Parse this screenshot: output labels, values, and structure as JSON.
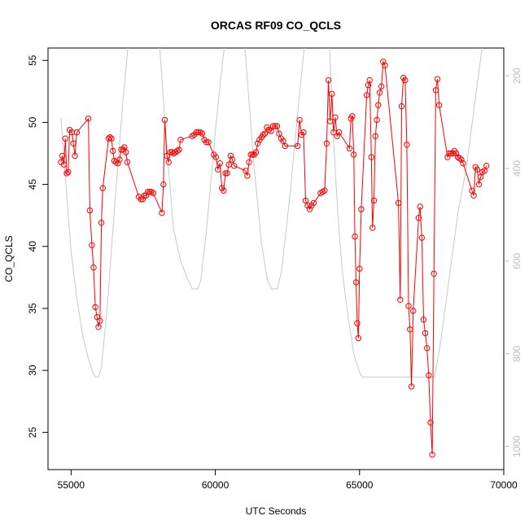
{
  "chart_data": {
    "type": "line",
    "title": "ORCAS RF09 CO_QCLS",
    "xlabel": "UTC Seconds",
    "ylabel": "CO_QCLS",
    "xlim": [
      54200,
      70000
    ],
    "ylim": [
      22,
      56
    ],
    "x_ticks": [
      55000,
      60000,
      65000,
      70000
    ],
    "y_ticks": [
      25,
      30,
      35,
      40,
      45,
      50,
      55
    ],
    "right_axis": {
      "lim": [
        1050,
        140
      ],
      "ticks": [
        200,
        400,
        600,
        800,
        1000
      ],
      "color": "#bdbdbd"
    },
    "grid": false,
    "series": [
      {
        "color": "#ff0000",
        "marker": "open-circle",
        "points": [
          [
            54650,
            46.8
          ],
          [
            54700,
            47.3
          ],
          [
            54750,
            46.6
          ],
          [
            54800,
            48.7
          ],
          [
            54850,
            45.9
          ],
          [
            54900,
            46.0
          ],
          [
            54950,
            49.4
          ],
          [
            55030,
            49.2
          ],
          [
            55080,
            48.3
          ],
          [
            55130,
            47.3
          ],
          [
            55200,
            49.2
          ],
          [
            55600,
            50.3
          ],
          [
            55650,
            42.9
          ],
          [
            55720,
            40.1
          ],
          [
            55780,
            38.3
          ],
          [
            55840,
            35.1
          ],
          [
            55900,
            34.3
          ],
          [
            55950,
            33.5
          ],
          [
            56000,
            34.0
          ],
          [
            56050,
            41.9
          ],
          [
            56100,
            44.7
          ],
          [
            56300,
            48.7
          ],
          [
            56350,
            48.8
          ],
          [
            56400,
            48.7
          ],
          [
            56450,
            47.7
          ],
          [
            56500,
            46.9
          ],
          [
            56560,
            46.8
          ],
          [
            56620,
            46.7
          ],
          [
            56680,
            47.0
          ],
          [
            56740,
            47.8
          ],
          [
            56800,
            47.8
          ],
          [
            56850,
            48.0
          ],
          [
            56900,
            47.6
          ],
          [
            56950,
            46.8
          ],
          [
            57350,
            44.0
          ],
          [
            57420,
            43.8
          ],
          [
            57480,
            43.8
          ],
          [
            57540,
            44.1
          ],
          [
            57600,
            44.1
          ],
          [
            57660,
            44.4
          ],
          [
            57720,
            44.4
          ],
          [
            57780,
            44.4
          ],
          [
            57850,
            44.3
          ],
          [
            58150,
            42.7
          ],
          [
            58200,
            45.0
          ],
          [
            58250,
            50.2
          ],
          [
            58320,
            47.3
          ],
          [
            58380,
            46.8
          ],
          [
            58440,
            47.6
          ],
          [
            58500,
            47.6
          ],
          [
            58560,
            47.5
          ],
          [
            58620,
            47.6
          ],
          [
            58680,
            47.7
          ],
          [
            58740,
            47.8
          ],
          [
            58800,
            48.6
          ],
          [
            59200,
            48.9
          ],
          [
            59270,
            49.0
          ],
          [
            59340,
            49.2
          ],
          [
            59410,
            49.2
          ],
          [
            59480,
            49.2
          ],
          [
            59550,
            49.1
          ],
          [
            59620,
            48.6
          ],
          [
            59690,
            48.4
          ],
          [
            59760,
            48.4
          ],
          [
            59950,
            47.4
          ],
          [
            60020,
            47.2
          ],
          [
            60090,
            46.2
          ],
          [
            60160,
            46.7
          ],
          [
            60230,
            44.7
          ],
          [
            60290,
            44.5
          ],
          [
            60350,
            45.9
          ],
          [
            60410,
            45.9
          ],
          [
            60470,
            46.6
          ],
          [
            60530,
            47.3
          ],
          [
            60590,
            47.0
          ],
          [
            60650,
            46.5
          ],
          [
            61050,
            46.1
          ],
          [
            61110,
            45.7
          ],
          [
            61170,
            46.8
          ],
          [
            61230,
            47.4
          ],
          [
            61290,
            47.4
          ],
          [
            61350,
            47.4
          ],
          [
            61410,
            47.6
          ],
          [
            61470,
            48.3
          ],
          [
            61530,
            48.6
          ],
          [
            61600,
            48.8
          ],
          [
            61660,
            49.0
          ],
          [
            61720,
            49.1
          ],
          [
            61790,
            49.6
          ],
          [
            61860,
            49.4
          ],
          [
            61930,
            49.3
          ],
          [
            62000,
            49.7
          ],
          [
            62070,
            49.7
          ],
          [
            62140,
            49.7
          ],
          [
            62210,
            49.1
          ],
          [
            62280,
            48.7
          ],
          [
            62350,
            48.5
          ],
          [
            62420,
            48.1
          ],
          [
            62850,
            48.1
          ],
          [
            62920,
            50.2
          ],
          [
            62990,
            49.0
          ],
          [
            63060,
            49.2
          ],
          [
            63130,
            43.7
          ],
          [
            63200,
            43.3
          ],
          [
            63270,
            43.0
          ],
          [
            63340,
            43.3
          ],
          [
            63410,
            43.5
          ],
          [
            63650,
            44.3
          ],
          [
            63720,
            44.4
          ],
          [
            63790,
            44.5
          ],
          [
            63860,
            48.3
          ],
          [
            63920,
            53.4
          ],
          [
            63980,
            50.1
          ],
          [
            64040,
            52.3
          ],
          [
            64100,
            49.2
          ],
          [
            64160,
            50.4
          ],
          [
            64220,
            48.9
          ],
          [
            64290,
            49.2
          ],
          [
            64650,
            47.9
          ],
          [
            64700,
            50.3
          ],
          [
            64750,
            50.5
          ],
          [
            64800,
            47.4
          ],
          [
            64840,
            40.8
          ],
          [
            64880,
            37.1
          ],
          [
            64920,
            33.8
          ],
          [
            64960,
            32.6
          ],
          [
            65000,
            38.2
          ],
          [
            65060,
            43.0
          ],
          [
            65250,
            52.2
          ],
          [
            65300,
            53.0
          ],
          [
            65350,
            53.4
          ],
          [
            65410,
            47.2
          ],
          [
            65450,
            41.5
          ],
          [
            65500,
            43.7
          ],
          [
            65550,
            48.9
          ],
          [
            65600,
            50.2
          ],
          [
            65650,
            51.4
          ],
          [
            65700,
            52.4
          ],
          [
            65760,
            52.9
          ],
          [
            65820,
            54.9
          ],
          [
            65880,
            54.6
          ],
          [
            66350,
            43.5
          ],
          [
            66410,
            35.7
          ],
          [
            66460,
            51.3
          ],
          [
            66520,
            53.6
          ],
          [
            66580,
            53.4
          ],
          [
            66640,
            48.2
          ],
          [
            66700,
            35.2
          ],
          [
            66750,
            33.3
          ],
          [
            66800,
            28.7
          ],
          [
            66860,
            34.8
          ],
          [
            67050,
            42.3
          ],
          [
            67100,
            43.2
          ],
          [
            67160,
            40.7
          ],
          [
            67220,
            34.1
          ],
          [
            67280,
            33.0
          ],
          [
            67340,
            31.8
          ],
          [
            67400,
            29.6
          ],
          [
            67460,
            25.8
          ],
          [
            67520,
            23.2
          ],
          [
            67580,
            37.8
          ],
          [
            67640,
            52.6
          ],
          [
            67700,
            53.5
          ],
          [
            67760,
            51.4
          ],
          [
            68050,
            47.2
          ],
          [
            68110,
            47.5
          ],
          [
            68170,
            47.5
          ],
          [
            68230,
            47.5
          ],
          [
            68290,
            47.7
          ],
          [
            68350,
            47.5
          ],
          [
            68410,
            47.2
          ],
          [
            68470,
            47.1
          ],
          [
            68530,
            47.0
          ],
          [
            68590,
            46.7
          ],
          [
            68900,
            44.5
          ],
          [
            68960,
            44.1
          ],
          [
            69020,
            46.4
          ],
          [
            69080,
            46.2
          ],
          [
            69140,
            45.0
          ],
          [
            69200,
            45.6
          ],
          [
            69260,
            46.0
          ],
          [
            69330,
            46.1
          ],
          [
            69400,
            46.5
          ]
        ]
      },
      {
        "color": "#c8c8c8",
        "axis": "right",
        "points": [
          [
            54650,
            290
          ],
          [
            54800,
            420
          ],
          [
            55000,
            580
          ],
          [
            55200,
            680
          ],
          [
            55400,
            760
          ],
          [
            55600,
            810
          ],
          [
            55750,
            840
          ],
          [
            55850,
            850
          ],
          [
            55950,
            850
          ],
          [
            56050,
            830
          ],
          [
            56250,
            700
          ],
          [
            56500,
            490
          ],
          [
            56800,
            250
          ],
          [
            57000,
            120
          ],
          [
            58050,
            120
          ],
          [
            58300,
            340
          ],
          [
            58550,
            530
          ],
          [
            58800,
            600
          ],
          [
            59050,
            640
          ],
          [
            59200,
            660
          ],
          [
            59400,
            660
          ],
          [
            59500,
            640
          ],
          [
            59700,
            530
          ],
          [
            60000,
            320
          ],
          [
            60250,
            170
          ],
          [
            60350,
            120
          ],
          [
            61000,
            120
          ],
          [
            61100,
            200
          ],
          [
            61350,
            400
          ],
          [
            61600,
            560
          ],
          [
            61800,
            640
          ],
          [
            61950,
            660
          ],
          [
            62150,
            660
          ],
          [
            62300,
            620
          ],
          [
            62600,
            450
          ],
          [
            62900,
            250
          ],
          [
            63100,
            130
          ],
          [
            63250,
            120
          ],
          [
            63950,
            120
          ],
          [
            64100,
            340
          ],
          [
            64250,
            500
          ],
          [
            64400,
            620
          ],
          [
            64600,
            720
          ],
          [
            64800,
            800
          ],
          [
            65000,
            840
          ],
          [
            65100,
            850
          ],
          [
            67000,
            850
          ],
          [
            67600,
            850
          ],
          [
            67800,
            780
          ],
          [
            68100,
            640
          ],
          [
            68400,
            500
          ],
          [
            68700,
            400
          ],
          [
            68950,
            280
          ],
          [
            69250,
            140
          ],
          [
            69400,
            120
          ]
        ]
      }
    ]
  }
}
